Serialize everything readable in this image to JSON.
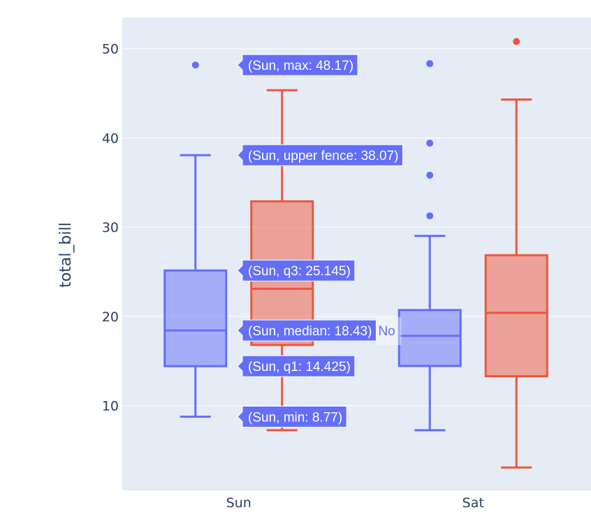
{
  "chart_data": {
    "type": "box",
    "title": "",
    "xlabel": "",
    "ylabel": "total_bill",
    "ylim": [
      0.5,
      53.5
    ],
    "yticks": [
      10,
      20,
      30,
      40,
      50
    ],
    "categories": [
      "Sun",
      "Sat"
    ],
    "grid": true,
    "background": "#e5ecf6",
    "series": [
      {
        "name": "No",
        "color": "#636efa",
        "boxes": [
          {
            "category": "Sun",
            "min": 8.77,
            "q1": 14.425,
            "median": 18.43,
            "q3": 25.145,
            "upper_fence": 38.07,
            "max": 48.17,
            "outliers": [
              48.17
            ]
          },
          {
            "category": "Sat",
            "min": 7.25,
            "q1": 14.45,
            "median": 17.82,
            "q3": 20.72,
            "upper_fence": 29.03,
            "max": 48.33,
            "outliers": [
              48.33,
              39.42,
              35.83,
              31.27
            ]
          }
        ]
      },
      {
        "color": "#ef553b",
        "boxes": [
          {
            "category": "Sun",
            "min": 7.25,
            "q1": 16.8,
            "median": 23.1,
            "q3": 32.9,
            "upper_fence": 45.35,
            "max": 45.35,
            "outliers": []
          },
          {
            "category": "Sat",
            "min": 3.07,
            "q1": 13.3,
            "median": 20.4,
            "q3": 26.86,
            "upper_fence": 44.3,
            "max": 50.81,
            "outliers": [
              50.81
            ]
          }
        ]
      }
    ],
    "hover_labels": [
      {
        "text": "(Sun, max: 48.17)",
        "value": 48.17
      },
      {
        "text": "(Sun, upper fence: 38.07)",
        "value": 38.07
      },
      {
        "text": "(Sun, q3: 25.145)",
        "value": 25.145
      },
      {
        "text": "(Sun, median: 18.43)",
        "value": 18.43
      },
      {
        "text": "(Sun, q1: 14.425)",
        "value": 14.425
      },
      {
        "text": "(Sun, min: 8.77)",
        "value": 8.77
      }
    ],
    "hover_series_label": "No"
  }
}
